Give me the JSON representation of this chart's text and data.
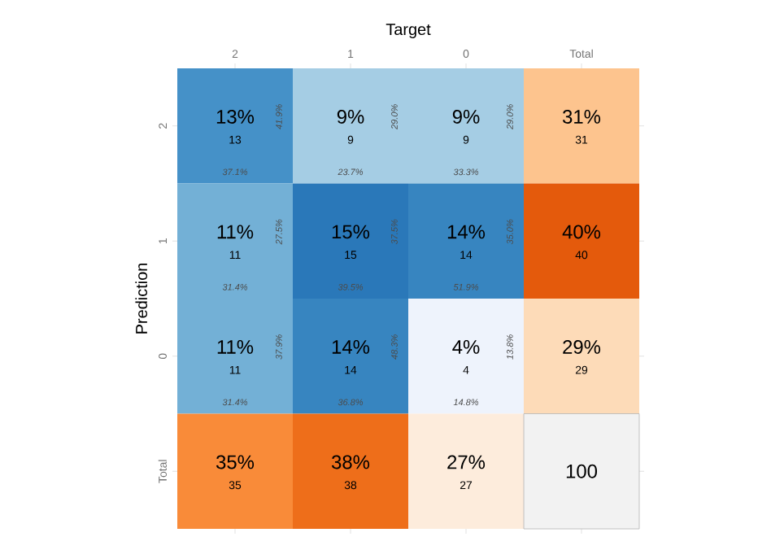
{
  "chart_data": {
    "type": "heatmap",
    "xlabel": "Target",
    "ylabel": "Prediction",
    "categories": [
      "2",
      "1",
      "0",
      "Total"
    ],
    "y_categories": [
      "2",
      "1",
      "0",
      "Total"
    ],
    "cells": [
      [
        13,
        9,
        9,
        31
      ],
      [
        11,
        15,
        14,
        40
      ],
      [
        11,
        14,
        4,
        29
      ],
      [
        35,
        38,
        27,
        100
      ]
    ],
    "cell_labels": [
      [
        "13%",
        "9%",
        "9%",
        "31%"
      ],
      [
        "11%",
        "15%",
        "14%",
        "40%"
      ],
      [
        "11%",
        "14%",
        "4%",
        "29%"
      ],
      [
        "35%",
        "38%",
        "27%",
        "100"
      ]
    ],
    "annotations": [
      "13",
      "9",
      "9",
      "31",
      "11",
      "15",
      "14",
      "40",
      "11",
      "14",
      "4",
      "29",
      "35",
      "38",
      "27",
      "41.9%",
      "37.1%",
      "29.0%",
      "23.7%",
      "29.0%",
      "33.3%",
      "27.5%",
      "31.4%",
      "37.5%",
      "39.5%",
      "35.0%",
      "51.9%",
      "37.9%",
      "31.4%",
      "48.3%",
      "36.8%",
      "13.8%",
      "14.8%"
    ]
  }
}
